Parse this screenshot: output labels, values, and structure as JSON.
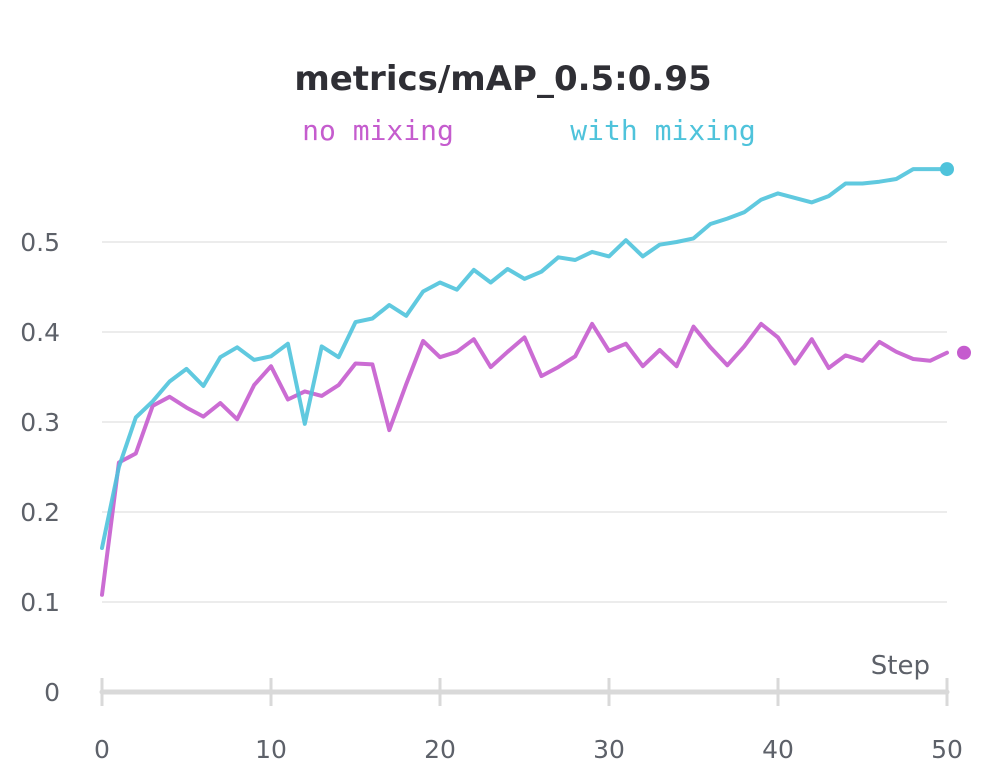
{
  "chart_data": {
    "type": "line",
    "title": "metrics/mAP_0.5:0.95",
    "xlabel": "Step",
    "ylabel": "",
    "xlim": [
      0,
      50
    ],
    "ylim": [
      0,
      0.6
    ],
    "x_ticks": [
      0,
      10,
      20,
      30,
      40,
      50
    ],
    "y_ticks": [
      0,
      0.1,
      0.2,
      0.3,
      0.4,
      0.5
    ],
    "grid": true,
    "legend_position": "top",
    "series": [
      {
        "name": "no mixing",
        "color": "#c55cce",
        "x": [
          0,
          1,
          2,
          3,
          4,
          5,
          6,
          7,
          8,
          9,
          10,
          11,
          12,
          13,
          14,
          15,
          16,
          17,
          18,
          19,
          20,
          21,
          22,
          23,
          24,
          25,
          26,
          27,
          28,
          29,
          30,
          31,
          32,
          33,
          34,
          35,
          36,
          37,
          38,
          39,
          40,
          41,
          42,
          43,
          44,
          45,
          46,
          47,
          48,
          49,
          50
        ],
        "y": [
          0.108,
          0.255,
          0.265,
          0.318,
          0.328,
          0.316,
          0.306,
          0.321,
          0.303,
          0.341,
          0.362,
          0.325,
          0.334,
          0.329,
          0.341,
          0.365,
          0.364,
          0.291,
          0.342,
          0.39,
          0.372,
          0.378,
          0.392,
          0.361,
          0.378,
          0.394,
          0.351,
          0.361,
          0.373,
          0.409,
          0.379,
          0.387,
          0.362,
          0.38,
          0.362,
          0.406,
          0.383,
          0.363,
          0.384,
          0.409,
          0.394,
          0.365,
          0.392,
          0.36,
          0.374,
          0.368,
          0.389,
          0.378,
          0.37,
          0.368,
          0.377
        ]
      },
      {
        "name": "with mixing",
        "color": "#4fc3db",
        "x": [
          0,
          1,
          2,
          3,
          4,
          5,
          6,
          7,
          8,
          9,
          10,
          11,
          12,
          13,
          14,
          15,
          16,
          17,
          18,
          19,
          20,
          21,
          22,
          23,
          24,
          25,
          26,
          27,
          28,
          29,
          30,
          31,
          32,
          33,
          34,
          35,
          36,
          37,
          38,
          39,
          40,
          41,
          42,
          43,
          44,
          45,
          46,
          47,
          48,
          49,
          50
        ],
        "y": [
          0.16,
          0.25,
          0.305,
          0.323,
          0.345,
          0.359,
          0.34,
          0.372,
          0.383,
          0.369,
          0.373,
          0.387,
          0.298,
          0.384,
          0.372,
          0.411,
          0.415,
          0.43,
          0.418,
          0.445,
          0.455,
          0.447,
          0.469,
          0.455,
          0.47,
          0.459,
          0.467,
          0.483,
          0.48,
          0.489,
          0.484,
          0.502,
          0.484,
          0.497,
          0.5,
          0.504,
          0.52,
          0.526,
          0.533,
          0.547,
          0.554,
          0.549,
          0.544,
          0.551,
          0.565,
          0.565,
          0.567,
          0.57,
          0.581,
          0.581,
          0.581
        ]
      }
    ]
  }
}
